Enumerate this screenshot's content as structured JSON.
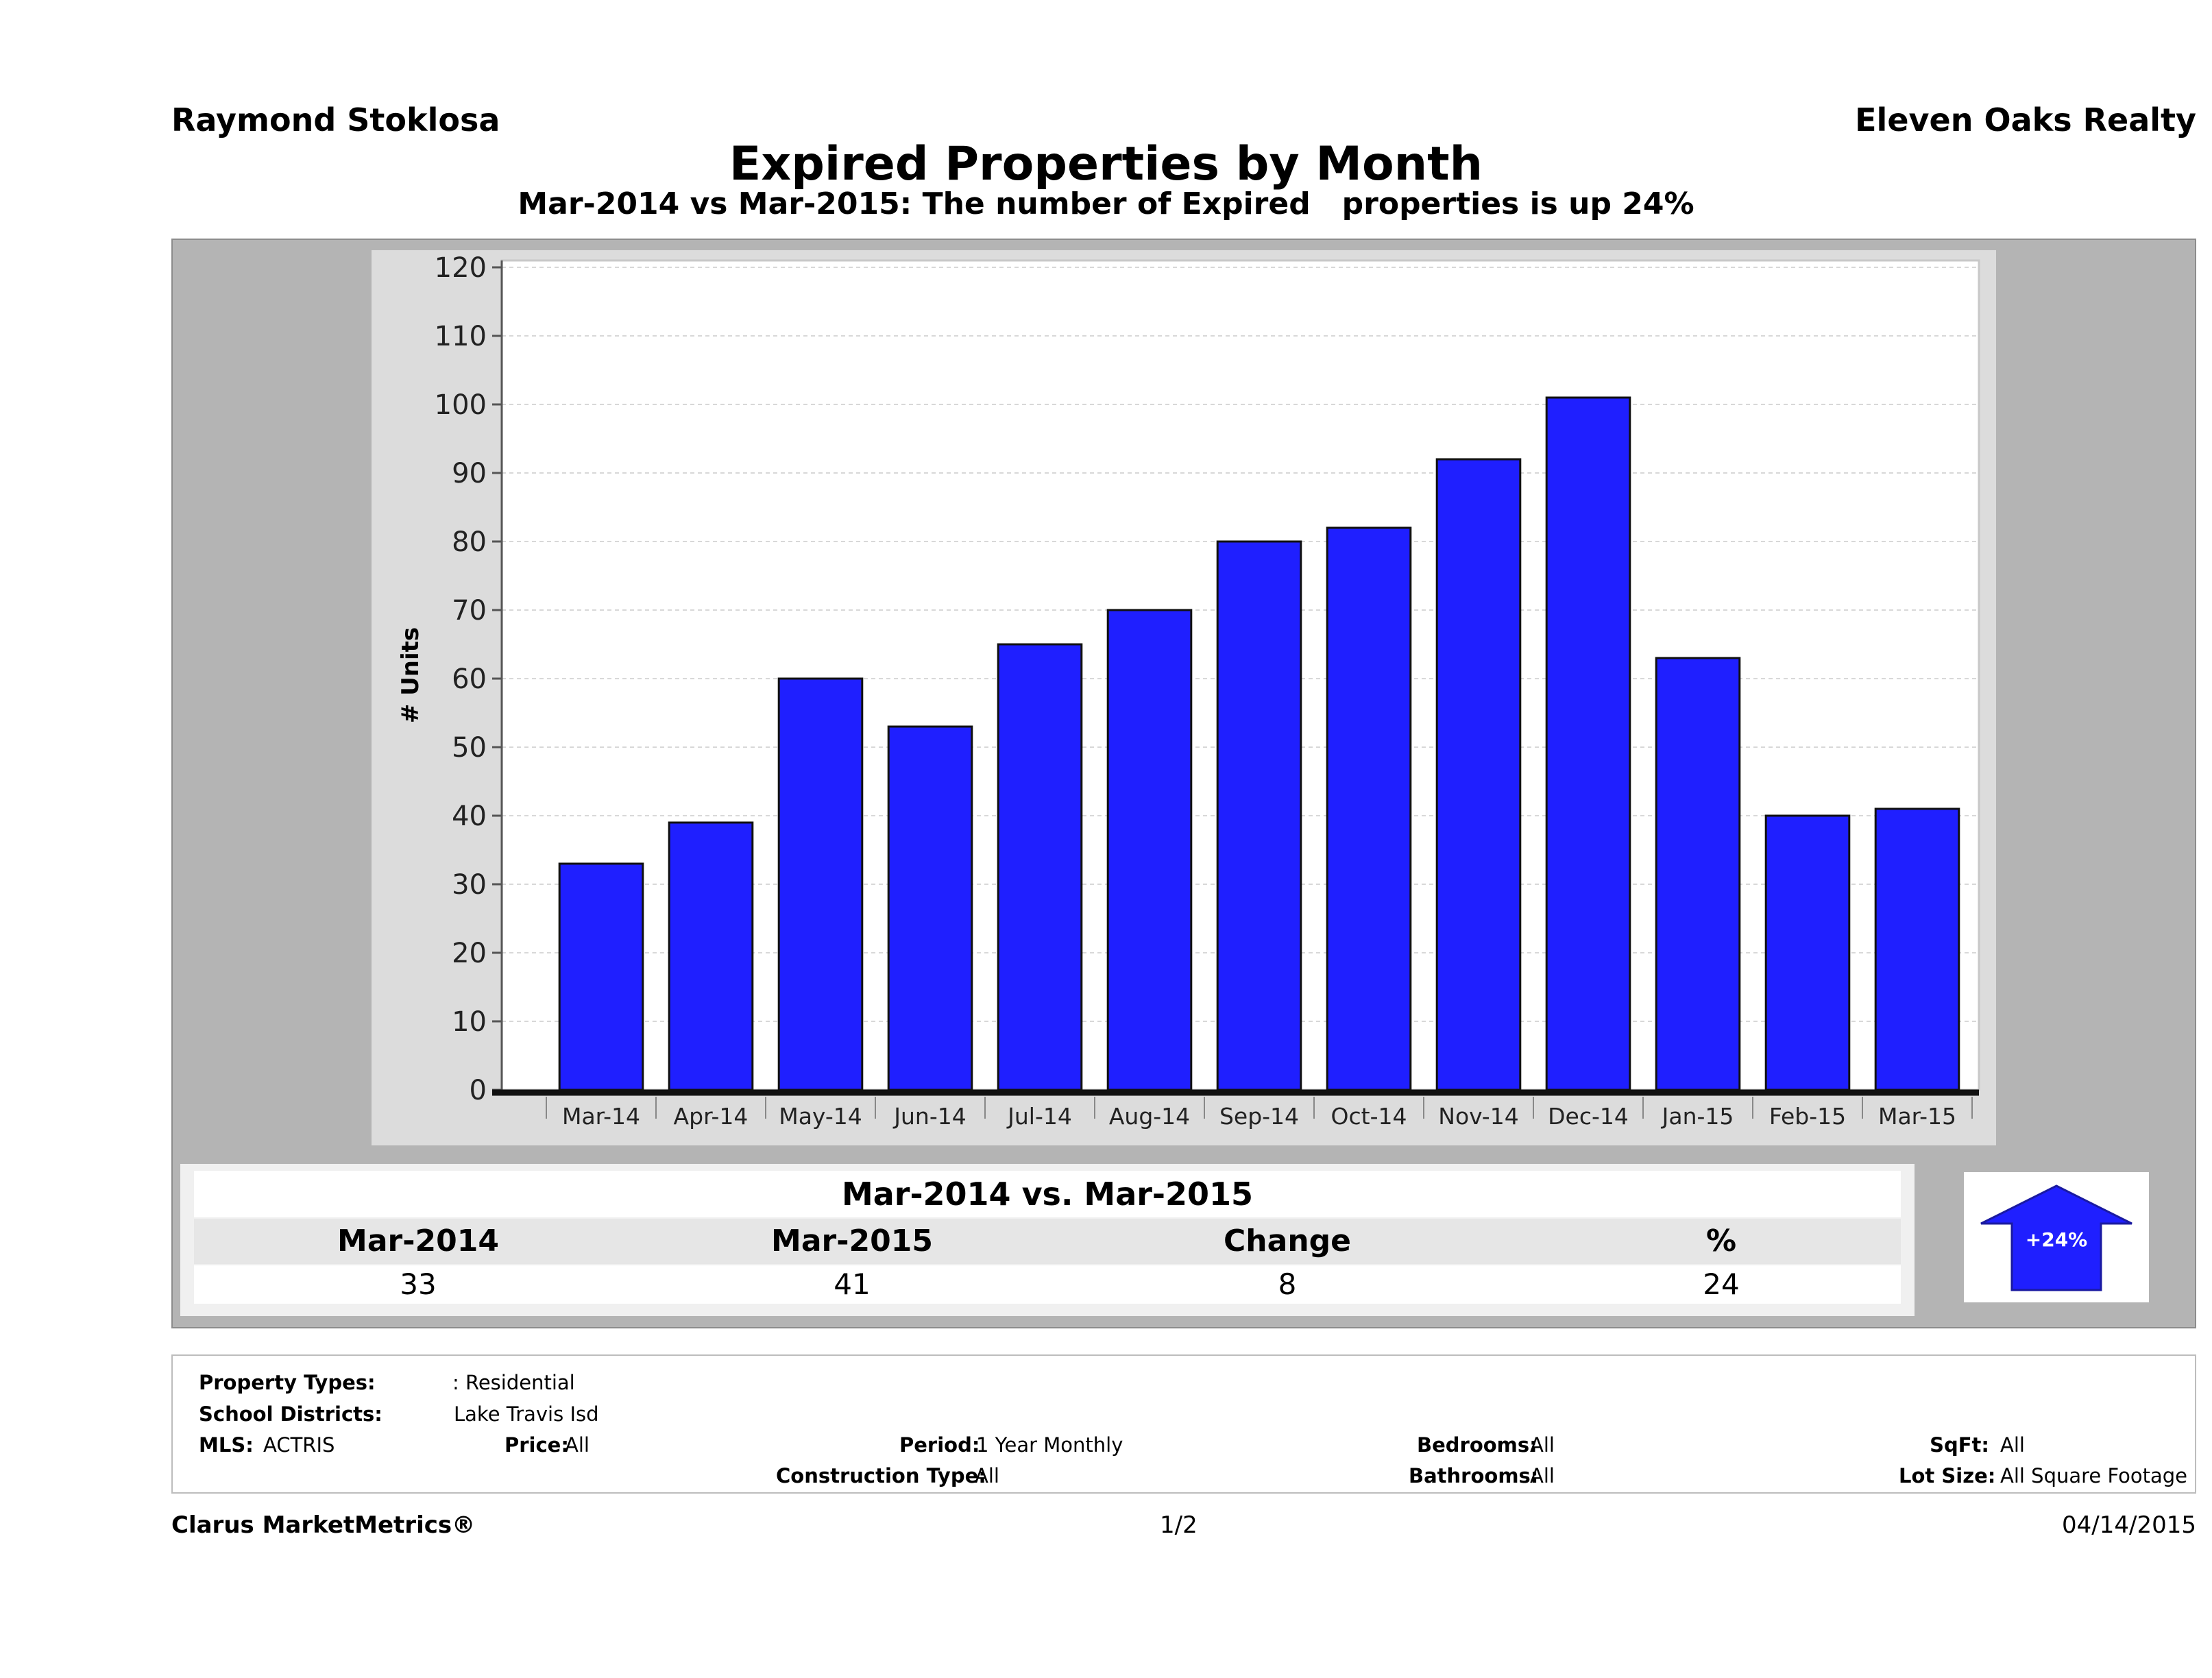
{
  "header": {
    "agent_name": "Raymond Stoklosa",
    "company_name": "Eleven Oaks Realty",
    "title": "Expired Properties by Month",
    "subtitle": "Mar-2014 vs Mar-2015: The number of Expired   properties is up 24%"
  },
  "chart_data": {
    "type": "bar",
    "categories": [
      "Mar-14",
      "Apr-14",
      "May-14",
      "Jun-14",
      "Jul-14",
      "Aug-14",
      "Sep-14",
      "Oct-14",
      "Nov-14",
      "Dec-14",
      "Jan-15",
      "Feb-15",
      "Mar-15"
    ],
    "values": [
      33,
      39,
      60,
      53,
      65,
      70,
      80,
      82,
      92,
      101,
      63,
      40,
      41
    ],
    "title": "",
    "xlabel": "",
    "ylabel": "# Units",
    "ylim": [
      0,
      120
    ],
    "yticks": [
      0,
      10,
      20,
      30,
      40,
      50,
      60,
      70,
      80,
      90,
      100,
      110,
      120
    ],
    "grid": true,
    "bar_color": "#1f1fff"
  },
  "summary": {
    "title": "Mar-2014 vs. Mar-2015",
    "headers": [
      "Mar-2014",
      "Mar-2015",
      "Change",
      "%"
    ],
    "values": [
      "33",
      "41",
      "8",
      "24"
    ],
    "badge": "+24%",
    "arrow_direction": "up",
    "arrow_color": "#1f1fff"
  },
  "criteria": {
    "property_types_label": "Property Types:",
    "property_types_value": ": Residential",
    "school_districts_label": "School Districts:",
    "school_districts_value": "Lake Travis Isd",
    "mls_label": "MLS:",
    "mls_value": "ACTRIS",
    "price_label": "Price:",
    "price_value": "All",
    "period_label": "Period:",
    "period_value": "1 Year Monthly",
    "construction_label": "Construction Type:",
    "construction_value": "All",
    "bedrooms_label": "Bedrooms:",
    "bedrooms_value": "All",
    "bathrooms_label": "Bathrooms:",
    "bathrooms_value": "All",
    "sqft_label": "SqFt:",
    "sqft_value": "All",
    "lotsize_label": "Lot Size:",
    "lotsize_value": "All Square Footage"
  },
  "footer": {
    "brand": "Clarus MarketMetrics®",
    "page": "1/2",
    "date": "04/14/2015"
  }
}
